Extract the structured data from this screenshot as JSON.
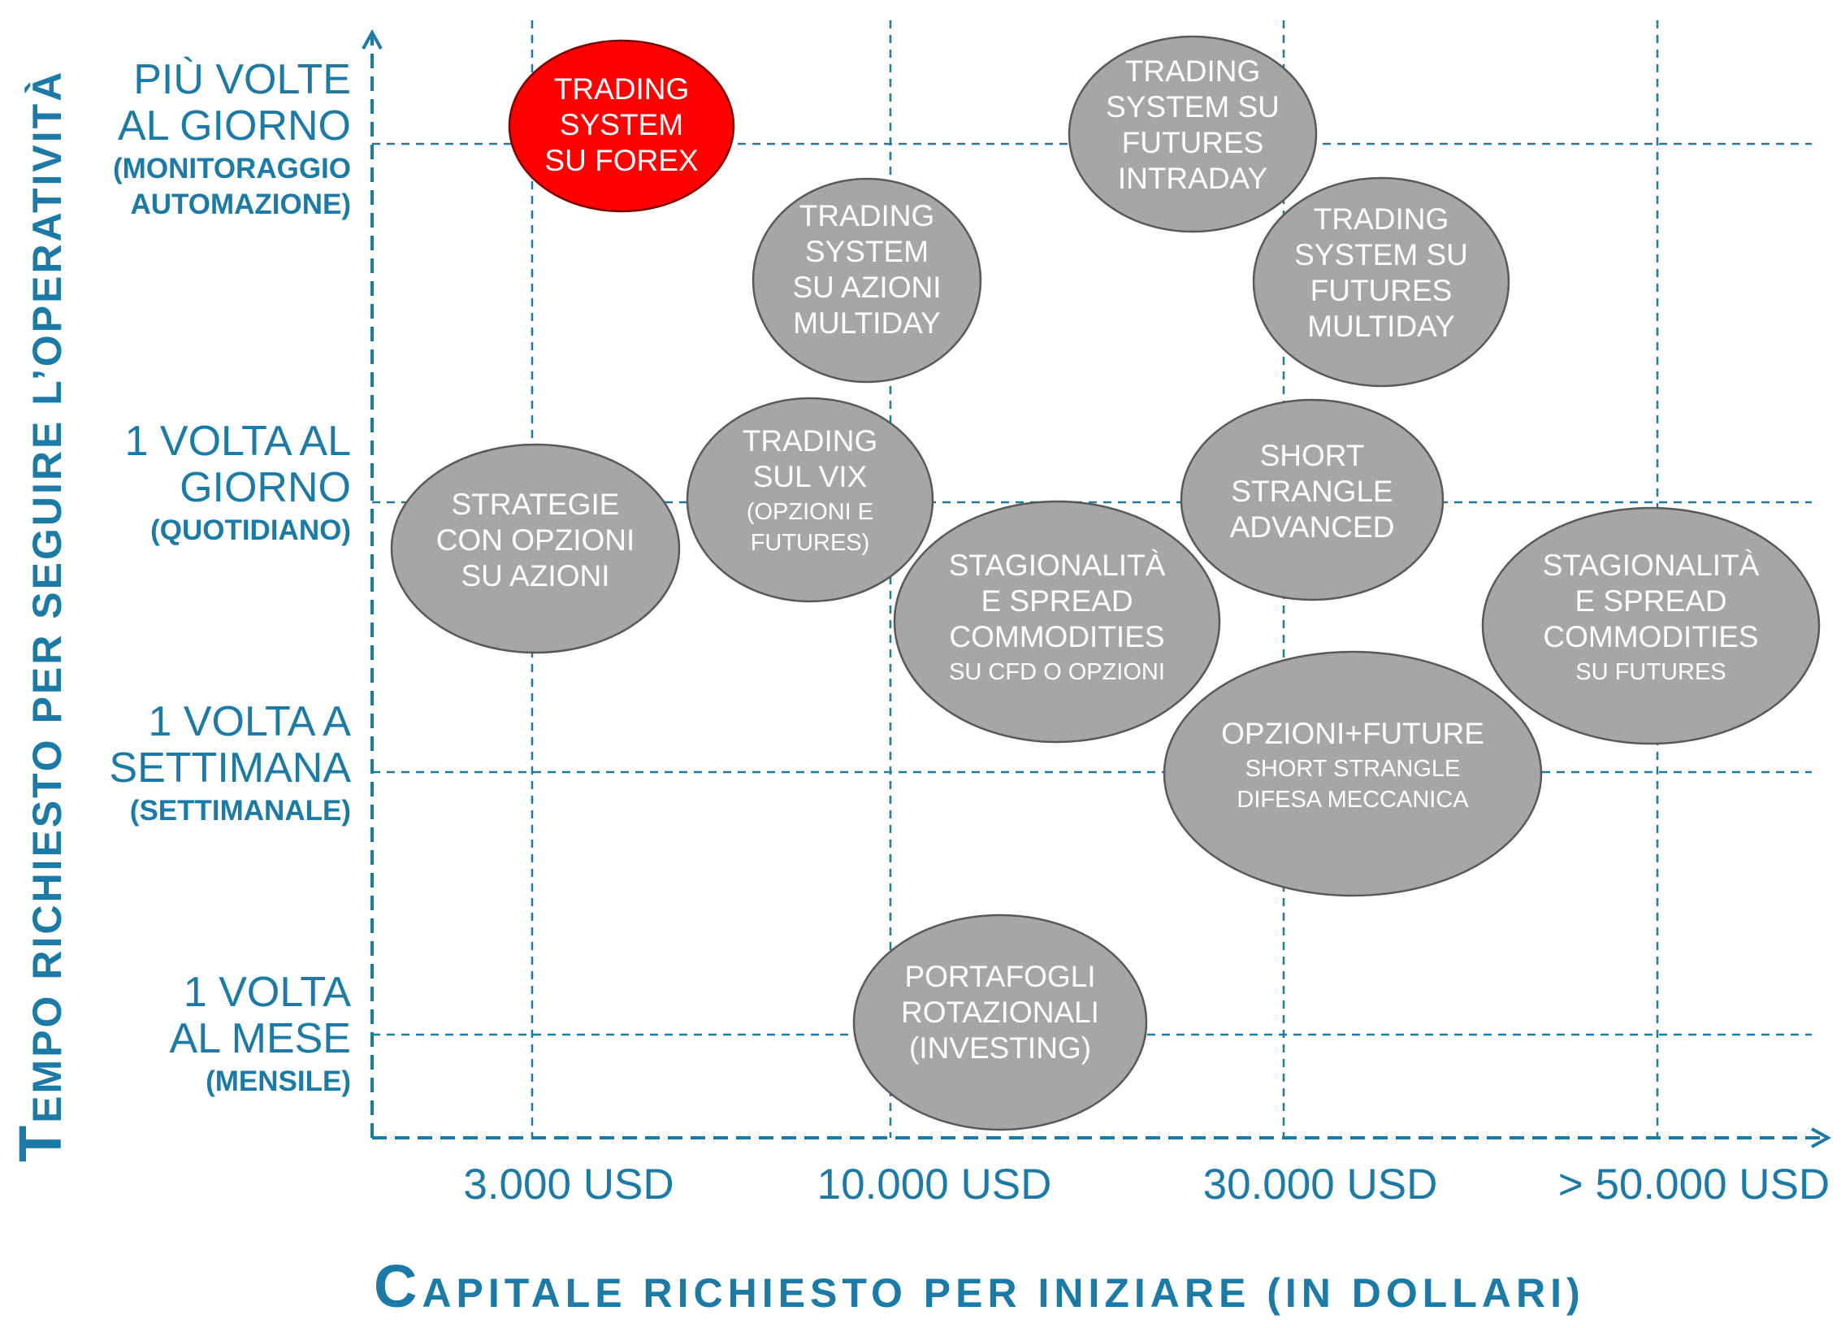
{
  "y_axis_title_first": "T",
  "y_axis_title_rest": "EMPO RICHIESTO PER SEGUIRE  L’OPERATIVITÀ",
  "x_axis_title_first": "C",
  "x_axis_title_rest": "APITALE RICHIESTO PER INIZIARE (IN DOLLARI)",
  "y_levels": [
    {
      "lines": [
        "PIÙ VOLTE",
        "AL GIORNO"
      ],
      "sub": [
        "(MONITORAGGIO",
        "AUTOMAZIONE)"
      ]
    },
    {
      "lines": [
        "1 VOLTA AL",
        "GIORNO"
      ],
      "sub": [
        "(QUOTIDIANO)"
      ]
    },
    {
      "lines": [
        "1 VOLTA A",
        "SETTIMANA"
      ],
      "sub": [
        "(SETTIMANALE)"
      ]
    },
    {
      "lines": [
        "1 VOLTA",
        "AL MESE"
      ],
      "sub": [
        "(MENSILE)"
      ]
    }
  ],
  "x_levels": [
    "3.000 USD",
    "10.000 USD",
    "30.000 USD",
    "> 50.000 USD"
  ],
  "colors": {
    "axis": "#1c7aa6",
    "bubble_fill": "#a6a6a6",
    "bubble_stroke": "#595959",
    "highlight_fill": "#ff0000",
    "highlight_stroke": "#7a0000",
    "bubble_text": "#ffffff"
  },
  "bubbles": [
    {
      "id": "trading-system-forex",
      "highlight": true,
      "lines": [
        "TRADING",
        "SYSTEM",
        "SU FOREX"
      ],
      "small": []
    },
    {
      "id": "trading-system-futures-intraday",
      "highlight": false,
      "lines": [
        "TRADING",
        "SYSTEM SU",
        "FUTURES",
        "INTRADAY"
      ],
      "small": []
    },
    {
      "id": "trading-system-azioni-multiday",
      "highlight": false,
      "lines": [
        "TRADING",
        "SYSTEM",
        "SU AZIONI",
        "MULTIDAY"
      ],
      "small": []
    },
    {
      "id": "trading-system-futures-multiday",
      "highlight": false,
      "lines": [
        "TRADING",
        "SYSTEM SU",
        "FUTURES",
        "MULTIDAY"
      ],
      "small": []
    },
    {
      "id": "strategie-opzioni-azioni",
      "highlight": false,
      "lines": [
        "STRATEGIE",
        "CON OPZIONI",
        "SU AZIONI"
      ],
      "small": []
    },
    {
      "id": "trading-vix",
      "highlight": false,
      "lines": [
        "TRADING",
        "SUL VIX"
      ],
      "small": [
        "(OPZIONI E",
        "FUTURES)"
      ]
    },
    {
      "id": "short-strangle-advanced",
      "highlight": false,
      "lines": [
        "SHORT",
        "STRANGLE",
        "ADVANCED"
      ],
      "small": []
    },
    {
      "id": "stagionalita-cfd",
      "highlight": false,
      "lines": [
        "STAGIONALITÀ",
        "E SPREAD",
        "COMMODITIES"
      ],
      "small": [
        "SU CFD O OPZIONI"
      ]
    },
    {
      "id": "stagionalita-futures",
      "highlight": false,
      "lines": [
        "STAGIONALITÀ",
        "E SPREAD",
        "COMMODITIES"
      ],
      "small": [
        "SU FUTURES"
      ]
    },
    {
      "id": "opzioni-future-strangle",
      "highlight": false,
      "lines": [
        "OPZIONI+FUTURE"
      ],
      "small": [
        "SHORT STRANGLE",
        "DIFESA MECCANICA"
      ]
    },
    {
      "id": "portafogli-rotazionali",
      "highlight": false,
      "lines": [
        "PORTAFOGLI",
        "ROTAZIONALI",
        "(INVESTING)"
      ],
      "small": []
    }
  ]
}
